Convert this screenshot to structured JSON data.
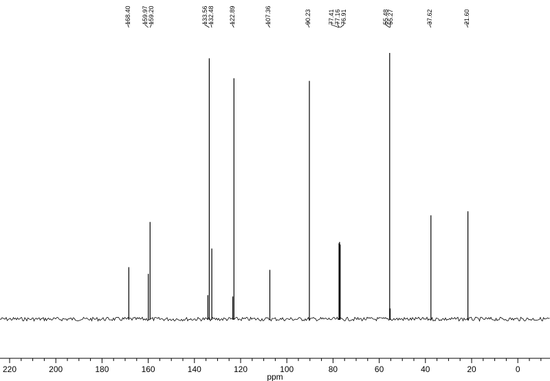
{
  "chart_data": {
    "type": "line",
    "xlabel": "ppm",
    "xlim": [
      225,
      -10
    ],
    "x_reversed": true,
    "ylim": [
      0,
      1
    ],
    "grid": false,
    "ticks": [
      220,
      200,
      180,
      160,
      140,
      120,
      100,
      80,
      60,
      40,
      20,
      0
    ],
    "tick_labels": [
      "220",
      "200",
      "180",
      "160",
      "140",
      "120",
      "100",
      "80",
      "60",
      "40",
      "20",
      "0"
    ],
    "peaks": [
      {
        "ppm": 168.4,
        "intensity": 0.195
      },
      {
        "ppm": 159.97,
        "intensity": 0.17
      },
      {
        "ppm": 159.2,
        "intensity": 0.365
      },
      {
        "ppm": 134.2,
        "intensity": 0.09
      },
      {
        "ppm": 133.56,
        "intensity": 0.98
      },
      {
        "ppm": 132.48,
        "intensity": 0.265
      },
      {
        "ppm": 123.4,
        "intensity": 0.085
      },
      {
        "ppm": 122.89,
        "intensity": 0.905
      },
      {
        "ppm": 107.36,
        "intensity": 0.185
      },
      {
        "ppm": 90.23,
        "intensity": 0.895
      },
      {
        "ppm": 77.41,
        "intensity": 0.285
      },
      {
        "ppm": 77.16,
        "intensity": 0.29
      },
      {
        "ppm": 76.91,
        "intensity": 0.28
      },
      {
        "ppm": 55.48,
        "intensity": 1.0
      },
      {
        "ppm": 55.27,
        "intensity": 0.04
      },
      {
        "ppm": 37.62,
        "intensity": 0.39
      },
      {
        "ppm": 21.6,
        "intensity": 0.405
      }
    ],
    "peak_labels": [
      "168.40",
      "159.97",
      "159.20",
      "133.56",
      "132.48",
      "122.89",
      "107.36",
      "90.23",
      "77.41",
      "77.16",
      "76.91",
      "55.48",
      "55.27",
      "37.62",
      "21.60"
    ],
    "peak_label_ppm": [
      168.4,
      159.97,
      159.2,
      133.56,
      132.48,
      122.89,
      107.36,
      90.23,
      77.41,
      77.16,
      76.91,
      55.48,
      55.27,
      37.62,
      21.6
    ],
    "line_color": "#000000"
  }
}
